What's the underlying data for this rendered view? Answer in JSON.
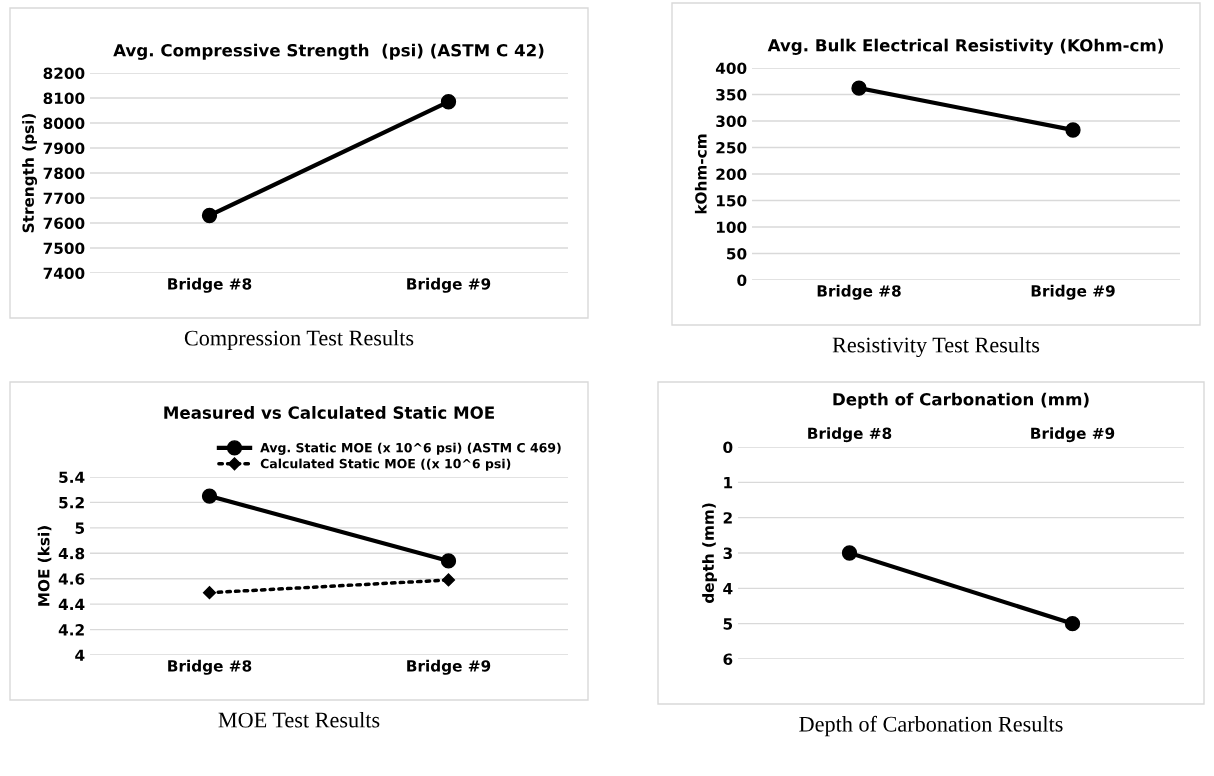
{
  "chart_data": [
    {
      "type": "line",
      "title": "Avg. Compressive Strength  (psi) (ASTM C 42)",
      "ylabel": "Strength (psi)",
      "categories": [
        "Bridge #8",
        "Bridge #9"
      ],
      "ylim": [
        7400,
        8200
      ],
      "yticks": [
        7400,
        7500,
        7600,
        7700,
        7800,
        7900,
        8000,
        8100,
        8200
      ],
      "grid": "y",
      "marker": "circle",
      "line_style": "solid",
      "series": [
        {
          "color": "#000000",
          "values": [
            7630,
            8085
          ]
        }
      ],
      "annotations": [
        "Compression Test Results"
      ]
    },
    {
      "type": "line",
      "title": "Avg. Bulk Electrical Resistivity (KOhm-cm)",
      "ylabel": "kOhm-cm",
      "categories": [
        "Bridge #8",
        "Bridge #9"
      ],
      "ylim": [
        0,
        400
      ],
      "yticks": [
        0,
        50,
        100,
        150,
        200,
        250,
        300,
        350,
        400
      ],
      "grid": "y",
      "marker": "circle",
      "line_style": "solid",
      "series": [
        {
          "color": "#000000",
          "values": [
            362,
            283
          ]
        }
      ],
      "annotations": [
        "Resistivity Test Results"
      ]
    },
    {
      "type": "line",
      "title": "Measured vs Calculated Static MOE",
      "ylabel": "MOE (ksi)",
      "categories": [
        "Bridge #8",
        "Bridge #9"
      ],
      "ylim": [
        4,
        5.4
      ],
      "yticks": [
        4,
        4.2,
        4.4,
        4.6,
        4.8,
        5,
        5.2,
        5.4
      ],
      "grid": "y",
      "legend": "top right",
      "series": [
        {
          "name": "Avg. Static MOE (x 10^6 psi) (ASTM C 469)",
          "color": "#000000",
          "values": [
            5.25,
            4.74
          ],
          "marker": "circle",
          "line_style": "solid"
        },
        {
          "name": "Calculated Static MOE ((x 10^6 psi)",
          "color": "#000000",
          "values": [
            4.49,
            4.59
          ],
          "marker": "diamond",
          "line_style": "dotted"
        }
      ],
      "annotations": [
        "MOE Test Results"
      ]
    },
    {
      "type": "line",
      "title": "Depth of Carbonation (mm)",
      "ylabel": "depth (mm)",
      "categories": [
        "Bridge #8",
        "Bridge #9"
      ],
      "ylim": [
        6,
        0
      ],
      "yticks": [
        0,
        1,
        2,
        3,
        4,
        5,
        6
      ],
      "grid": "y",
      "marker": "circle",
      "line_style": "solid",
      "series": [
        {
          "color": "#000000",
          "values": [
            3,
            5
          ]
        }
      ],
      "annotations": [
        "Depth of Carbonation Results"
      ]
    }
  ]
}
